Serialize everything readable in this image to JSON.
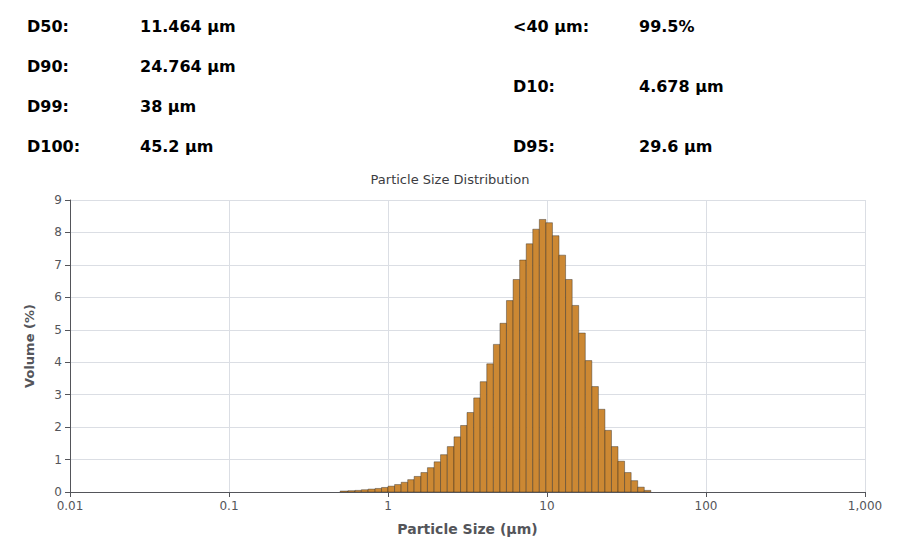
{
  "chart_data": {
    "type": "histogram",
    "title": "Particle Size Distribution",
    "xlabel": "Particle Size (μm)",
    "ylabel": "Volume (%)",
    "annotations": [
      [
        "D50:",
        "11.464 μm"
      ],
      [
        "D90:",
        "24.764 μm"
      ],
      [
        "D99:",
        "38 μm"
      ],
      [
        "D100:",
        "45.2 μm"
      ],
      [
        "<40 μm:",
        "99.5%"
      ],
      [
        "D10:",
        "4.678 μm"
      ],
      [
        "D95:",
        "29.6 μm"
      ]
    ],
    "bins": [
      0.5,
      0.56,
      0.62,
      0.68,
      0.75,
      0.83,
      0.91,
      1.0,
      1.1,
      1.21,
      1.33,
      1.46,
      1.61,
      1.77,
      1.95,
      2.14,
      2.36,
      2.6,
      2.86,
      3.14,
      3.46,
      3.8,
      4.18,
      4.6,
      5.06,
      5.56,
      6.12,
      6.73,
      7.4,
      8.14,
      8.95,
      9.84,
      10.82,
      11.9,
      13.09,
      14.4,
      15.83,
      17.41,
      19.14,
      21.05,
      23.14,
      25.44,
      27.97,
      30.76,
      33.83,
      37.2,
      40.91,
      45.0
    ],
    "values": [
      0.03,
      0.04,
      0.05,
      0.07,
      0.09,
      0.11,
      0.14,
      0.18,
      0.23,
      0.3,
      0.38,
      0.48,
      0.6,
      0.75,
      0.93,
      1.15,
      1.4,
      1.7,
      2.05,
      2.45,
      2.9,
      3.4,
      3.95,
      4.55,
      5.2,
      5.9,
      6.55,
      7.15,
      7.65,
      8.1,
      8.4,
      8.3,
      7.9,
      7.3,
      6.55,
      5.75,
      4.9,
      4.05,
      3.25,
      2.55,
      1.9,
      1.4,
      0.95,
      0.6,
      0.35,
      0.15,
      0.05
    ],
    "color": "#CC8833",
    "log": "x",
    "xlim": [
      0.01,
      1000
    ],
    "xticks": [
      0.01,
      0.1,
      1,
      10,
      100,
      {
        "value": 1000,
        "label": "1,000"
      }
    ],
    "ylim": [
      0,
      9
    ],
    "yticks": [
      0,
      1,
      2,
      3,
      4,
      5,
      6,
      7,
      8,
      9
    ],
    "grid": true
  }
}
